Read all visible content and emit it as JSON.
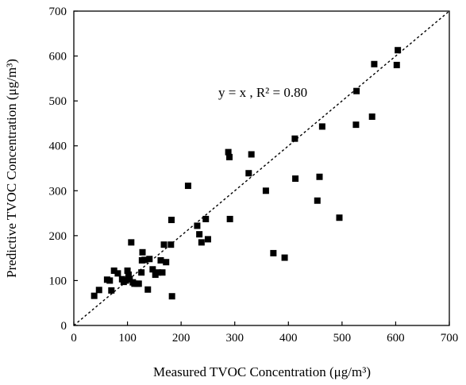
{
  "chart_data": {
    "type": "scatter",
    "xlabel": "Measured TVOC Concentration (μg/m³)",
    "ylabel": "Predictive TVOC Concentration (μg/m³)",
    "xlim": [
      0,
      700
    ],
    "ylim": [
      0,
      700
    ],
    "xticks": [
      "0",
      "100",
      "200",
      "300",
      "400",
      "500",
      "600",
      "700"
    ],
    "yticks": [
      "0",
      "100",
      "200",
      "300",
      "400",
      "500",
      "600",
      "700"
    ],
    "grid": false,
    "reference_line": {
      "equation": "y = x",
      "style": "dashed"
    },
    "annotation": "y = x , R² = 0.80",
    "marker_color": "#000000",
    "points": [
      [
        38,
        66
      ],
      [
        47,
        79
      ],
      [
        62,
        102
      ],
      [
        67,
        100
      ],
      [
        70,
        78
      ],
      [
        75,
        122
      ],
      [
        82,
        116
      ],
      [
        90,
        103
      ],
      [
        93,
        97
      ],
      [
        97,
        100
      ],
      [
        100,
        122
      ],
      [
        102,
        113
      ],
      [
        104,
        103
      ],
      [
        107,
        185
      ],
      [
        110,
        96
      ],
      [
        113,
        93
      ],
      [
        118,
        93
      ],
      [
        121,
        93
      ],
      [
        126,
        118
      ],
      [
        127,
        145
      ],
      [
        128,
        163
      ],
      [
        132,
        146
      ],
      [
        138,
        80
      ],
      [
        141,
        148
      ],
      [
        147,
        125
      ],
      [
        152,
        113
      ],
      [
        157,
        118
      ],
      [
        162,
        145
      ],
      [
        165,
        118
      ],
      [
        168,
        180
      ],
      [
        172,
        141
      ],
      [
        181,
        180
      ],
      [
        182,
        235
      ],
      [
        183,
        65
      ],
      [
        213,
        311
      ],
      [
        230,
        222
      ],
      [
        234,
        203
      ],
      [
        238,
        185
      ],
      [
        246,
        237
      ],
      [
        250,
        192
      ],
      [
        288,
        386
      ],
      [
        290,
        375
      ],
      [
        291,
        237
      ],
      [
        326,
        339
      ],
      [
        331,
        381
      ],
      [
        358,
        300
      ],
      [
        372,
        161
      ],
      [
        393,
        151
      ],
      [
        412,
        416
      ],
      [
        413,
        327
      ],
      [
        454,
        278
      ],
      [
        458,
        331
      ],
      [
        463,
        443
      ],
      [
        495,
        240
      ],
      [
        526,
        447
      ],
      [
        527,
        522
      ],
      [
        556,
        465
      ],
      [
        560,
        582
      ],
      [
        602,
        580
      ],
      [
        604,
        613
      ]
    ]
  }
}
